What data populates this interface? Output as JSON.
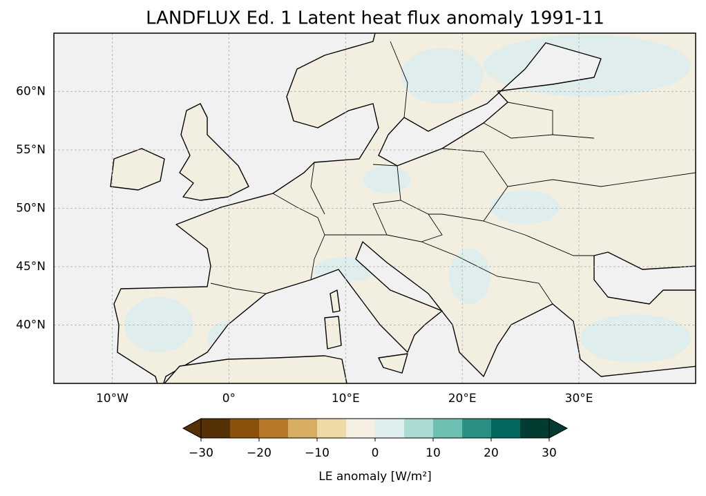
{
  "map": {
    "title": "LANDFLUX Ed. 1 Latent heat flux anomaly 1991-11",
    "xlim": [
      -15,
      40
    ],
    "ylim": [
      35,
      65
    ],
    "xticks": [
      {
        "value": -10,
        "label": "10°W"
      },
      {
        "value": 0,
        "label": "0°"
      },
      {
        "value": 10,
        "label": "10°E"
      },
      {
        "value": 20,
        "label": "20°E"
      },
      {
        "value": 30,
        "label": "30°E"
      }
    ],
    "yticks": [
      {
        "value": 40,
        "label": "40°N"
      },
      {
        "value": 45,
        "label": "45°N"
      },
      {
        "value": 50,
        "label": "50°N"
      },
      {
        "value": 55,
        "label": "55°N"
      },
      {
        "value": 60,
        "label": "60°N"
      }
    ],
    "grid": true,
    "colorbar": {
      "label": "LE anomaly [W/m²]",
      "levels": [
        -30,
        -25,
        -20,
        -15,
        -10,
        -5,
        0,
        5,
        10,
        15,
        20,
        25,
        30
      ],
      "colors": [
        "#553005",
        "#8b510a",
        "#b8782a",
        "#d6ad62",
        "#eddaa7",
        "#f5efe1",
        "#deefed",
        "#abdcd3",
        "#6cbfb1",
        "#2b8f84",
        "#03675d",
        "#013b31"
      ],
      "extend": "both",
      "ticks": [
        {
          "value": -30,
          "label": "−30"
        },
        {
          "value": -20,
          "label": "−20"
        },
        {
          "value": -10,
          "label": "−10"
        },
        0,
        10,
        20,
        30
      ]
    }
  }
}
